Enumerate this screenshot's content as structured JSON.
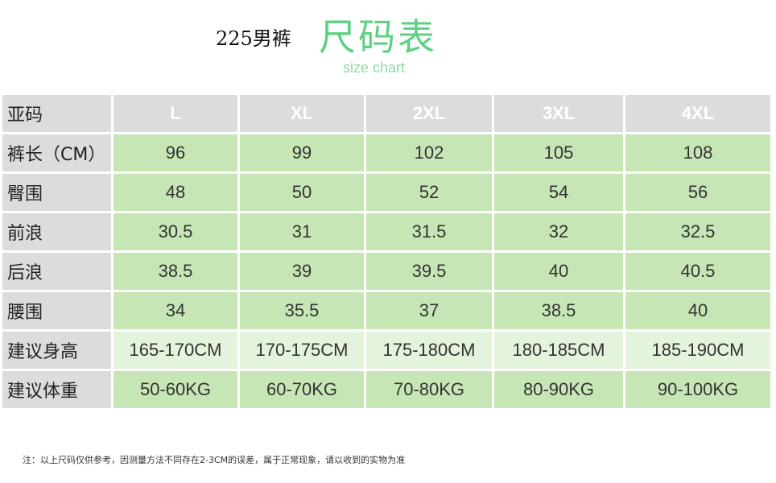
{
  "header": {
    "prefix": "225男裤",
    "title_cn": "尺码表",
    "title_en": "size chart"
  },
  "table": {
    "header_label": "亚码",
    "sizes": [
      "L",
      "XL",
      "2XL",
      "3XL",
      "4XL"
    ],
    "rows": [
      {
        "label": "裤长（CM）",
        "values": [
          "96",
          "99",
          "102",
          "105",
          "108"
        ]
      },
      {
        "label": "臀围",
        "values": [
          "48",
          "50",
          "52",
          "54",
          "56"
        ]
      },
      {
        "label": "前浪",
        "values": [
          "30.5",
          "31",
          "31.5",
          "32",
          "32.5"
        ]
      },
      {
        "label": "后浪",
        "values": [
          "38.5",
          "39",
          "39.5",
          "40",
          "40.5"
        ]
      },
      {
        "label": "腰围",
        "values": [
          "34",
          "35.5",
          "37",
          "38.5",
          "40"
        ]
      },
      {
        "label": "建议身高",
        "values": [
          "165-170CM",
          "170-175CM",
          "175-180CM",
          "180-185CM",
          "185-190CM"
        ]
      },
      {
        "label": "建议体重",
        "values": [
          "50-60KG",
          "60-70KG",
          "70-80KG",
          "80-90KG",
          "90-100KG"
        ]
      }
    ]
  },
  "footer": {
    "note": "注：以上尺码仅供参考，因测量方法不同存在2-3CM的误差，属于正常现象，请以收到的实物为准"
  },
  "colors": {
    "title_green": "#5dd183",
    "header_gray": "#dcdcdc",
    "cell_green": "#c7e6b5",
    "cell_light_green": "#e4f3dc"
  }
}
